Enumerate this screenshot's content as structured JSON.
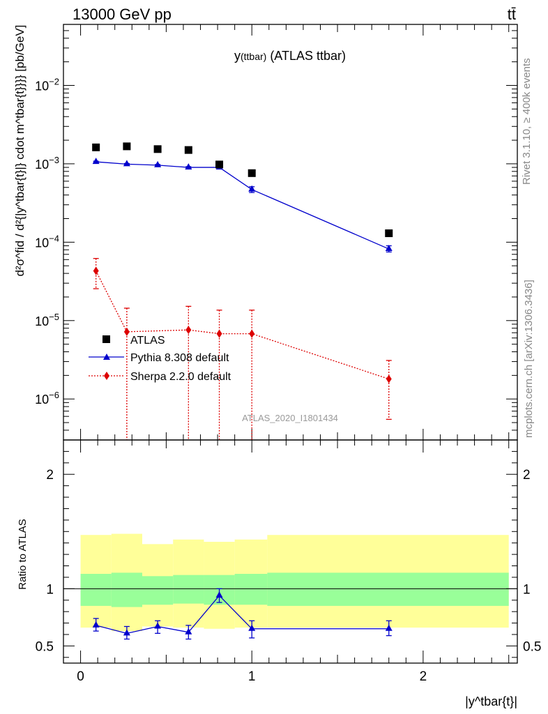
{
  "header": {
    "left": "13000 GeV pp",
    "right": "tt̄"
  },
  "side_text": {
    "rivet": "Rivet 3.1.10, ≥ 400k events",
    "mcplots": "mcplots.cern.ch [arXiv:1306.3436]"
  },
  "plot_title_main": "y",
  "plot_title_sub": "(ttbar)",
  "plot_title_rest": " (ATLAS ttbar)",
  "watermark": "ATLAS_2020_I1801434",
  "y_label_main": "d²σ^fid / d²{|y^tbar{t}|} cdot m^tbar{t}}}} [pb/GeV]",
  "y_label_ratio": "Ratio to ATLAS",
  "x_label": "|y^tbar{t}|",
  "legend": {
    "atlas": "ATLAS",
    "pythia": "Pythia 8.308 default",
    "sherpa": "Sherpa 2.2.0 default"
  },
  "colors": {
    "atlas": "#000000",
    "pythia": "#0000cc",
    "sherpa": "#dd0000",
    "band_inner": "#99ff99",
    "band_outer": "#ffff99"
  },
  "chart_data": [
    {
      "type": "scatter",
      "panel": "main",
      "title": "y(ttbar) (ATLAS ttbar)",
      "ylog": true,
      "xlim": [
        -0.1,
        2.55
      ],
      "ylim": [
        3e-07,
        0.06
      ],
      "y_ticks": [
        "10^-2",
        "10^-3",
        "10^-4",
        "10^-5",
        "10^-6"
      ],
      "grid": false,
      "legend_position": "bottom-left",
      "series": [
        {
          "name": "ATLAS",
          "marker": "square",
          "x": [
            0.09,
            0.27,
            0.45,
            0.63,
            0.81,
            1.0,
            1.8
          ],
          "y": [
            0.00162,
            0.00167,
            0.00154,
            0.0015,
            0.00098,
            0.00076,
            0.00013
          ]
        },
        {
          "name": "Pythia 8.308 default",
          "marker": "triangle",
          "line": "solid",
          "x": [
            0.09,
            0.27,
            0.45,
            0.63,
            0.81,
            1.0,
            1.8
          ],
          "y": [
            0.00106,
            0.00099,
            0.00096,
            0.0009,
            0.0009,
            0.00047,
            8.2e-05
          ],
          "yerr_low": [
            0.00104,
            0.00097,
            0.00094,
            0.00088,
            0.00087,
            0.00043,
            7.5e-05
          ],
          "yerr_high": [
            0.00108,
            0.00101,
            0.00098,
            0.00092,
            0.00093,
            0.00051,
            9e-05
          ]
        },
        {
          "name": "Sherpa 2.2.0 default",
          "marker": "diamond",
          "line": "dotted",
          "x": [
            0.09,
            0.27,
            0.63,
            0.81,
            1.0,
            1.8
          ],
          "y": [
            4.3e-05,
            7.2e-06,
            7.6e-06,
            6.8e-06,
            6.8e-06,
            1.8e-06
          ],
          "yerr_low": [
            2.55e-05,
            3e-07,
            3e-07,
            3e-07,
            3e-07,
            5.5e-07
          ],
          "yerr_high": [
            6.2e-05,
            1.44e-05,
            1.52e-05,
            1.36e-05,
            1.36e-05,
            3.1e-06
          ]
        }
      ]
    },
    {
      "type": "line",
      "panel": "ratio",
      "xlabel": "|y^tbar{t}|",
      "ylabel": "Ratio to ATLAS",
      "xlim": [
        -0.1,
        2.55
      ],
      "ylim": [
        0.35,
        2.3
      ],
      "x_ticks": [
        0,
        1,
        2
      ],
      "y_ticks": [
        0.5,
        1,
        2
      ],
      "band_edges": [
        0,
        0.18,
        0.36,
        0.54,
        0.72,
        0.9,
        1.09,
        2.5
      ],
      "band_inner_low": [
        0.85,
        0.84,
        0.86,
        0.87,
        0.86,
        0.86,
        0.85
      ],
      "band_inner_high": [
        1.13,
        1.14,
        1.11,
        1.12,
        1.12,
        1.13,
        1.14
      ],
      "band_outer_low": [
        0.66,
        0.63,
        0.67,
        0.66,
        0.65,
        0.66,
        0.66
      ],
      "band_outer_high": [
        1.47,
        1.48,
        1.39,
        1.43,
        1.41,
        1.43,
        1.47
      ],
      "series": [
        {
          "name": "Pythia 8.308 default",
          "x": [
            0.09,
            0.27,
            0.45,
            0.63,
            0.81,
            1.0,
            1.8
          ],
          "y": [
            0.68,
            0.61,
            0.67,
            0.62,
            0.94,
            0.65,
            0.65
          ],
          "yerr_low": [
            0.63,
            0.56,
            0.61,
            0.56,
            0.88,
            0.57,
            0.59
          ],
          "yerr_high": [
            0.74,
            0.67,
            0.72,
            0.68,
            1.0,
            0.72,
            0.72
          ]
        }
      ]
    }
  ]
}
